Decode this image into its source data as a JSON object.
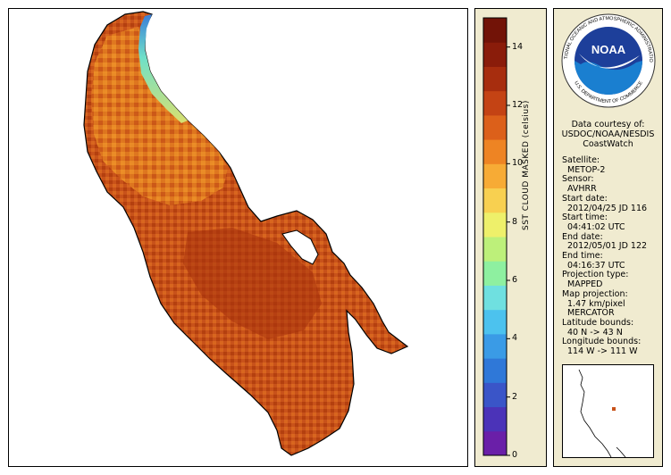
{
  "credit": {
    "lines": [
      "Data courtesy of:",
      "USDOC/NOAA/NESDIS",
      "CoastWatch"
    ]
  },
  "logo": {
    "center_text": "NOAA",
    "ring_text_top": "NATIONAL OCEANIC AND ATMOSPHERIC ADMINISTRATION",
    "ring_text_bottom": "U.S. DEPARTMENT OF COMMERCE"
  },
  "metadata": [
    {
      "label": "Satellite:",
      "value": "METOP-2"
    },
    {
      "label": "Sensor:",
      "value": "AVHRR"
    },
    {
      "label": "Start date:",
      "value": "2012/04/25 JD 116"
    },
    {
      "label": "Start time:",
      "value": "04:41:02 UTC"
    },
    {
      "label": "End date:",
      "value": "2012/05/01 JD 122"
    },
    {
      "label": "End time:",
      "value": "04:16:37 UTC"
    },
    {
      "label": "Projection type:",
      "value": "MAPPED"
    },
    {
      "label": "Map projection:",
      "value": "1.47 km/pixel",
      "value2": "MERCATOR"
    },
    {
      "label": "Latitude bounds:",
      "value": "40 N -> 43 N"
    },
    {
      "label": "Longitude bounds:",
      "value": "114 W -> 111 W"
    }
  ],
  "colorbar": {
    "label": "SST CLOUD MASKED (celsius)",
    "ticks": [
      "0",
      "2",
      "4",
      "6",
      "8",
      "10",
      "12",
      "14"
    ],
    "min": 0,
    "max": 15,
    "colors": [
      "#6a1fa8",
      "#4b33b8",
      "#3a55c8",
      "#2f78d8",
      "#3a9be6",
      "#4cc2ee",
      "#6fe0e0",
      "#8ef0a0",
      "#bdf07a",
      "#eef06a",
      "#f8d050",
      "#f7ab35",
      "#ee8423",
      "#dc601a",
      "#c44314",
      "#a72d0e",
      "#8a1c0a",
      "#721307"
    ]
  },
  "colors": {
    "panel_bg": "#f0ebd0",
    "land": "#ffffff",
    "water_warm": "#c44f16"
  }
}
